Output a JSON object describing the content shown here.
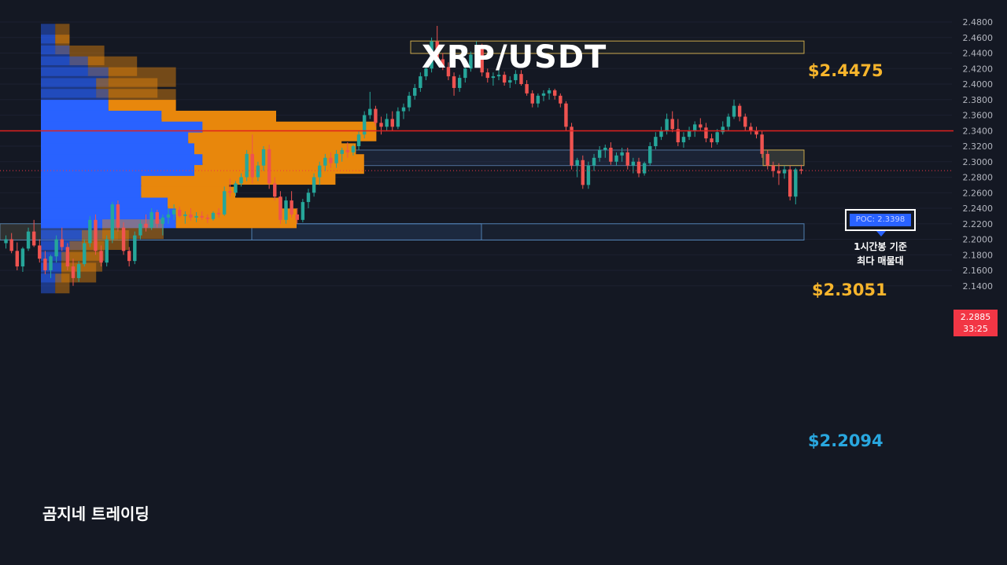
{
  "colors": {
    "background": "#141823",
    "up": "#26a69a",
    "down": "#ef5350",
    "poc_line": "#e0201e",
    "volume_buy": "#2962ff",
    "volume_sell": "#e8870c",
    "zone_top": "#c9a84a",
    "zone_bottom": "#4f7fb0",
    "label_gold": "#f7b52c",
    "label_blue": "#29a7df"
  },
  "title": "XRP/USDT",
  "watermark": "곰지네 트레이딩",
  "zones": {
    "top_label": "$2.4475",
    "mid_label": "$2.3051",
    "bottom_label": "$2.2094"
  },
  "poc": {
    "label": "POC: 2.3398",
    "note_line1": "1시간봉 기준",
    "note_line2": "최다 매물대"
  },
  "price_badge": {
    "price": "2.2885",
    "countdown": "33:25"
  },
  "chart_data": {
    "type": "candlestick",
    "symbol": "XRP/USDT",
    "timeframe_note": "1시간봉",
    "y_ticks": [
      "2.4800",
      "2.4600",
      "2.4400",
      "2.4200",
      "2.4000",
      "2.3800",
      "2.3600",
      "2.3400",
      "2.3200",
      "2.3000",
      "2.2800",
      "2.2600",
      "2.2400",
      "2.2200",
      "2.2000",
      "2.1800",
      "2.1600",
      "2.1400"
    ],
    "ylim": [
      2.13,
      2.49
    ],
    "poc_price": 2.3398,
    "last_price": 2.2885,
    "levels": [
      2.4475,
      2.3051,
      2.2094
    ],
    "volume_profile_note": "bars: price level, buy volume, sell volume (relative units)",
    "volume_profile": [
      {
        "price": 2.465,
        "buy": 7,
        "sell": 7,
        "highlight": false
      },
      {
        "price": 2.451,
        "buy": 7,
        "sell": 7,
        "highlight": false
      },
      {
        "price": 2.437,
        "buy": 14,
        "sell": 17,
        "highlight": false
      },
      {
        "price": 2.423,
        "buy": 23,
        "sell": 24,
        "highlight": false
      },
      {
        "price": 2.409,
        "buy": 33,
        "sell": 33,
        "highlight": false
      },
      {
        "price": 2.395,
        "buy": 27,
        "sell": 30,
        "highlight": false
      },
      {
        "price": 2.381,
        "buy": 33,
        "sell": 33,
        "highlight": false
      },
      {
        "price": 2.367,
        "buy": 33,
        "sell": 33,
        "highlight": true
      },
      {
        "price": 2.353,
        "buy": 59,
        "sell": 56,
        "highlight": true
      },
      {
        "price": 2.339,
        "buy": 79,
        "sell": 85,
        "highlight": true
      },
      {
        "price": 2.325,
        "buy": 72,
        "sell": 75,
        "highlight": true
      },
      {
        "price": 2.311,
        "buy": 75,
        "sell": 79,
        "highlight": true
      },
      {
        "price": 2.297,
        "buy": 79,
        "sell": 79,
        "highlight": true
      },
      {
        "price": 2.283,
        "buy": 75,
        "sell": 69,
        "highlight": true
      },
      {
        "price": 2.269,
        "buy": 49,
        "sell": 43,
        "highlight": true
      },
      {
        "price": 2.255,
        "buy": 49,
        "sell": 46,
        "highlight": true
      },
      {
        "price": 2.241,
        "buy": 62,
        "sell": 56,
        "highlight": true
      },
      {
        "price": 2.227,
        "buy": 66,
        "sell": 59,
        "highlight": true
      },
      {
        "price": 2.213,
        "buy": 30,
        "sell": 30,
        "highlight": false
      },
      {
        "price": 2.199,
        "buy": 20,
        "sell": 23,
        "highlight": false
      },
      {
        "price": 2.185,
        "buy": 14,
        "sell": 17,
        "highlight": false
      },
      {
        "price": 2.171,
        "buy": 10,
        "sell": 20,
        "highlight": false
      },
      {
        "price": 2.157,
        "buy": 10,
        "sell": 17,
        "highlight": false
      },
      {
        "price": 2.143,
        "buy": 7,
        "sell": 7,
        "highlight": false
      }
    ],
    "candles_ohlc": [
      [
        2.195,
        2.205,
        2.188,
        2.2
      ],
      [
        2.2,
        2.208,
        2.182,
        2.185
      ],
      [
        2.185,
        2.196,
        2.16,
        2.165
      ],
      [
        2.165,
        2.19,
        2.158,
        2.188
      ],
      [
        2.188,
        2.215,
        2.185,
        2.21
      ],
      [
        2.21,
        2.225,
        2.19,
        2.192
      ],
      [
        2.192,
        2.2,
        2.17,
        2.175
      ],
      [
        2.175,
        2.185,
        2.155,
        2.16
      ],
      [
        2.16,
        2.18,
        2.15,
        2.178
      ],
      [
        2.178,
        2.205,
        2.17,
        2.2
      ],
      [
        2.2,
        2.215,
        2.185,
        2.19
      ],
      [
        2.19,
        2.195,
        2.16,
        2.165
      ],
      [
        2.165,
        2.175,
        2.14,
        2.15
      ],
      [
        2.15,
        2.172,
        2.145,
        2.168
      ],
      [
        2.168,
        2.2,
        2.165,
        2.195
      ],
      [
        2.195,
        2.23,
        2.19,
        2.225
      ],
      [
        2.225,
        2.232,
        2.18,
        2.185
      ],
      [
        2.185,
        2.192,
        2.165,
        2.17
      ],
      [
        2.17,
        2.205,
        2.165,
        2.2
      ],
      [
        2.2,
        2.248,
        2.195,
        2.245
      ],
      [
        2.245,
        2.25,
        2.21,
        2.215
      ],
      [
        2.215,
        2.222,
        2.18,
        2.185
      ],
      [
        2.185,
        2.19,
        2.165,
        2.172
      ],
      [
        2.172,
        2.21,
        2.168,
        2.205
      ],
      [
        2.205,
        2.225,
        2.2,
        2.22
      ],
      [
        2.22,
        2.232,
        2.21,
        2.215
      ],
      [
        2.215,
        2.24,
        2.212,
        2.235
      ],
      [
        2.235,
        2.238,
        2.215,
        2.22
      ],
      [
        2.22,
        2.232,
        2.205,
        2.228
      ],
      [
        2.228,
        2.24,
        2.22,
        2.232
      ],
      [
        2.232,
        2.245,
        2.225,
        2.238
      ],
      [
        2.238,
        2.242,
        2.228,
        2.23
      ],
      [
        2.23,
        2.236,
        2.22,
        2.232
      ],
      [
        2.232,
        2.24,
        2.224,
        2.228
      ],
      [
        2.228,
        2.235,
        2.222,
        2.23
      ],
      [
        2.23,
        2.236,
        2.225,
        2.228
      ],
      [
        2.228,
        2.232,
        2.221,
        2.226
      ],
      [
        2.226,
        2.236,
        2.224,
        2.234
      ],
      [
        2.234,
        2.24,
        2.228,
        2.232
      ],
      [
        2.232,
        2.268,
        2.23,
        2.262
      ],
      [
        2.262,
        2.278,
        2.255,
        2.26
      ],
      [
        2.26,
        2.275,
        2.256,
        2.272
      ],
      [
        2.272,
        2.285,
        2.268,
        2.28
      ],
      [
        2.28,
        2.315,
        2.275,
        2.31
      ],
      [
        2.31,
        2.335,
        2.272,
        2.28
      ],
      [
        2.28,
        2.3,
        2.275,
        2.295
      ],
      [
        2.295,
        2.32,
        2.288,
        2.316
      ],
      [
        2.316,
        2.322,
        2.265,
        2.272
      ],
      [
        2.272,
        2.28,
        2.25,
        2.255
      ],
      [
        2.255,
        2.262,
        2.22,
        2.225
      ],
      [
        2.225,
        2.255,
        2.22,
        2.25
      ],
      [
        2.25,
        2.262,
        2.228,
        2.232
      ],
      [
        2.232,
        2.24,
        2.22,
        2.225
      ],
      [
        2.225,
        2.252,
        2.222,
        2.248
      ],
      [
        2.248,
        2.265,
        2.24,
        2.26
      ],
      [
        2.26,
        2.285,
        2.255,
        2.28
      ],
      [
        2.28,
        2.3,
        2.27,
        2.295
      ],
      [
        2.295,
        2.31,
        2.288,
        2.305
      ],
      [
        2.305,
        2.312,
        2.292,
        2.298
      ],
      [
        2.298,
        2.315,
        2.292,
        2.31
      ],
      [
        2.31,
        2.318,
        2.3,
        2.315
      ],
      [
        2.315,
        2.325,
        2.305,
        2.312
      ],
      [
        2.312,
        2.322,
        2.308,
        2.32
      ],
      [
        2.32,
        2.34,
        2.315,
        2.335
      ],
      [
        2.335,
        2.365,
        2.33,
        2.36
      ],
      [
        2.36,
        2.39,
        2.355,
        2.368
      ],
      [
        2.368,
        2.372,
        2.345,
        2.35
      ],
      [
        2.35,
        2.358,
        2.335,
        2.345
      ],
      [
        2.345,
        2.362,
        2.34,
        2.355
      ],
      [
        2.355,
        2.365,
        2.34,
        2.345
      ],
      [
        2.345,
        2.37,
        2.342,
        2.365
      ],
      [
        2.365,
        2.375,
        2.355,
        2.37
      ],
      [
        2.37,
        2.39,
        2.365,
        2.385
      ],
      [
        2.385,
        2.4,
        2.38,
        2.395
      ],
      [
        2.395,
        2.415,
        2.39,
        2.41
      ],
      [
        2.41,
        2.425,
        2.405,
        2.42
      ],
      [
        2.42,
        2.46,
        2.415,
        2.455
      ],
      [
        2.455,
        2.475,
        2.43,
        2.432
      ],
      [
        2.432,
        2.44,
        2.418,
        2.422
      ],
      [
        2.422,
        2.428,
        2.405,
        2.41
      ],
      [
        2.41,
        2.415,
        2.385,
        2.395
      ],
      [
        2.395,
        2.412,
        2.39,
        2.408
      ],
      [
        2.408,
        2.425,
        2.402,
        2.42
      ],
      [
        2.42,
        2.442,
        2.416,
        2.438
      ],
      [
        2.438,
        2.455,
        2.43,
        2.448
      ],
      [
        2.448,
        2.452,
        2.41,
        2.415
      ],
      [
        2.415,
        2.42,
        2.402,
        2.408
      ],
      [
        2.408,
        2.415,
        2.398,
        2.41
      ],
      [
        2.41,
        2.418,
        2.405,
        2.412
      ],
      [
        2.412,
        2.416,
        2.398,
        2.402
      ],
      [
        2.402,
        2.41,
        2.395,
        2.405
      ],
      [
        2.405,
        2.418,
        2.4,
        2.413
      ],
      [
        2.413,
        2.418,
        2.398,
        2.4
      ],
      [
        2.4,
        2.405,
        2.385,
        2.388
      ],
      [
        2.388,
        2.392,
        2.37,
        2.375
      ],
      [
        2.375,
        2.388,
        2.37,
        2.385
      ],
      [
        2.385,
        2.392,
        2.378,
        2.388
      ],
      [
        2.388,
        2.395,
        2.38,
        2.392
      ],
      [
        2.392,
        2.394,
        2.38,
        2.385
      ],
      [
        2.385,
        2.388,
        2.37,
        2.375
      ],
      [
        2.375,
        2.378,
        2.34,
        2.345
      ],
      [
        2.345,
        2.35,
        2.29,
        2.295
      ],
      [
        2.295,
        2.305,
        2.28,
        2.302
      ],
      [
        2.302,
        2.308,
        2.265,
        2.27
      ],
      [
        2.27,
        2.3,
        2.265,
        2.295
      ],
      [
        2.295,
        2.31,
        2.288,
        2.305
      ],
      [
        2.305,
        2.32,
        2.3,
        2.315
      ],
      [
        2.315,
        2.322,
        2.305,
        2.318
      ],
      [
        2.318,
        2.325,
        2.296,
        2.3
      ],
      [
        2.3,
        2.312,
        2.295,
        2.308
      ],
      [
        2.308,
        2.318,
        2.3,
        2.312
      ],
      [
        2.312,
        2.318,
        2.29,
        2.295
      ],
      [
        2.295,
        2.305,
        2.285,
        2.3
      ],
      [
        2.3,
        2.305,
        2.28,
        2.285
      ],
      [
        2.285,
        2.3,
        2.282,
        2.298
      ],
      [
        2.298,
        2.325,
        2.295,
        2.32
      ],
      [
        2.32,
        2.338,
        2.316,
        2.332
      ],
      [
        2.332,
        2.345,
        2.328,
        2.34
      ],
      [
        2.34,
        2.362,
        2.335,
        2.355
      ],
      [
        2.355,
        2.365,
        2.338,
        2.342
      ],
      [
        2.342,
        2.355,
        2.32,
        2.325
      ],
      [
        2.325,
        2.338,
        2.318,
        2.332
      ],
      [
        2.332,
        2.345,
        2.328,
        2.34
      ],
      [
        2.34,
        2.352,
        2.332,
        2.348
      ],
      [
        2.348,
        2.356,
        2.34,
        2.344
      ],
      [
        2.344,
        2.35,
        2.325,
        2.33
      ],
      [
        2.33,
        2.336,
        2.318,
        2.325
      ],
      [
        2.325,
        2.342,
        2.322,
        2.338
      ],
      [
        2.338,
        2.352,
        2.335,
        2.345
      ],
      [
        2.345,
        2.362,
        2.34,
        2.358
      ],
      [
        2.358,
        2.38,
        2.355,
        2.372
      ],
      [
        2.372,
        2.375,
        2.352,
        2.358
      ],
      [
        2.358,
        2.362,
        2.34,
        2.345
      ],
      [
        2.345,
        2.35,
        2.335,
        2.34
      ],
      [
        2.34,
        2.345,
        2.33,
        2.335
      ],
      [
        2.335,
        2.34,
        2.305,
        2.31
      ],
      [
        2.31,
        2.315,
        2.29,
        2.295
      ],
      [
        2.295,
        2.3,
        2.28,
        2.288
      ],
      [
        2.288,
        2.298,
        2.27,
        2.285
      ],
      [
        2.285,
        2.295,
        2.278,
        2.29
      ],
      [
        2.29,
        2.295,
        2.25,
        2.255
      ],
      [
        2.255,
        2.292,
        2.245,
        2.29
      ],
      [
        2.29,
        2.296,
        2.284,
        2.2885
      ]
    ]
  }
}
